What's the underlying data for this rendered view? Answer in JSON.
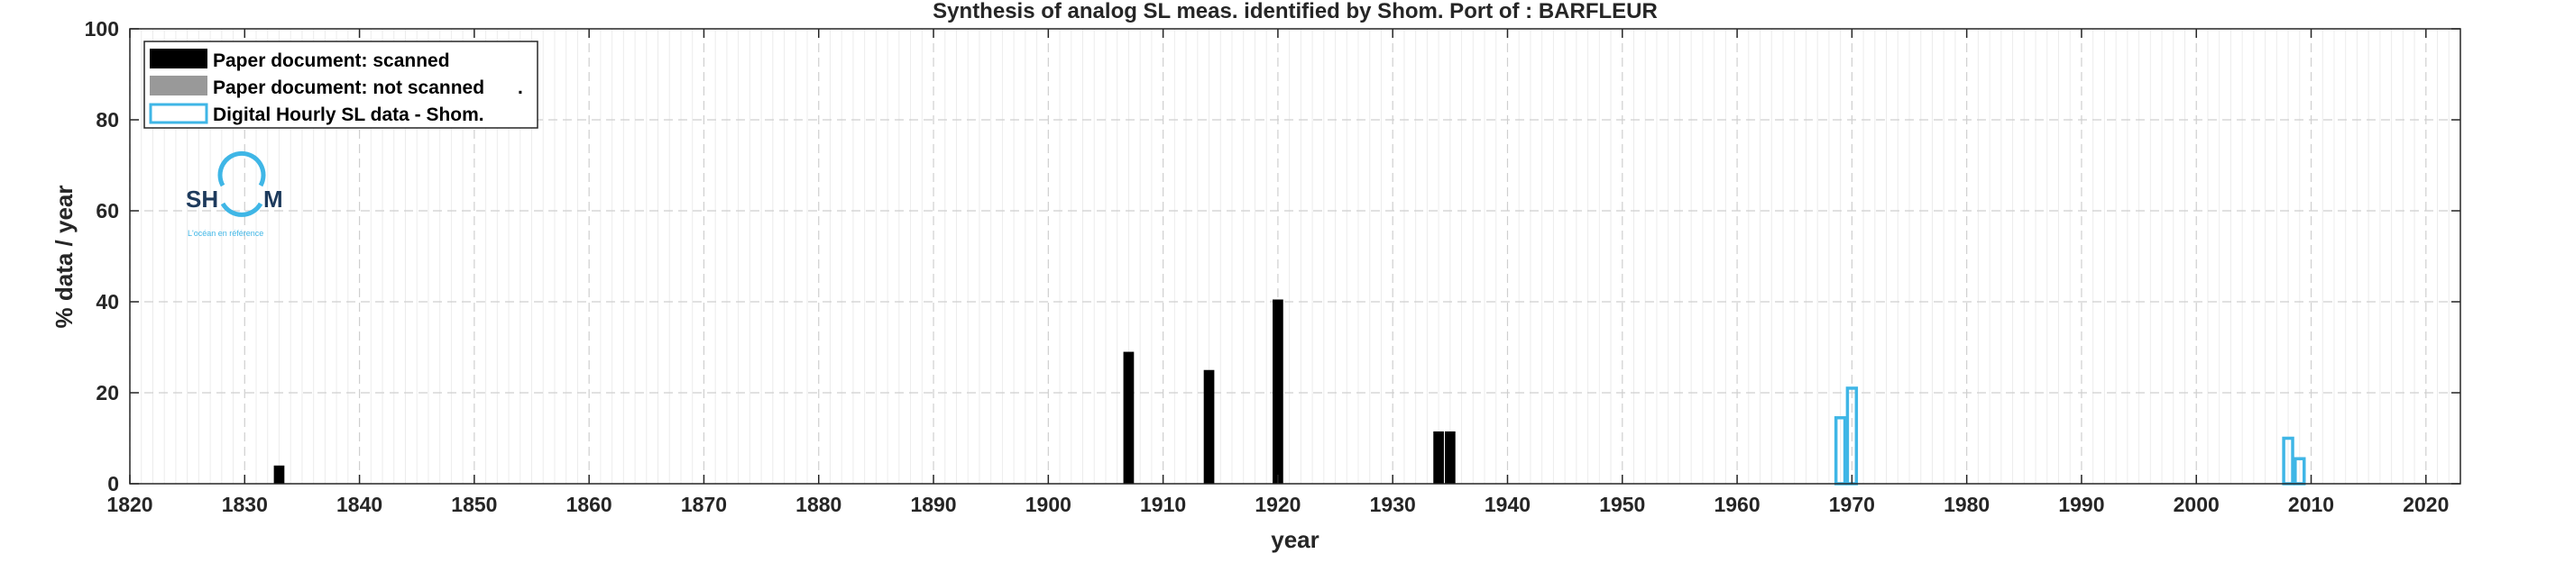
{
  "chart_data": {
    "type": "bar",
    "title": "Synthesis of analog SL meas. identified by Shom. Port of : BARFLEUR",
    "xlabel": "year",
    "ylabel": "% data / year",
    "xlim": [
      1820,
      2023
    ],
    "ylim": [
      0,
      100
    ],
    "xticks": [
      "1820",
      "1830",
      "1840",
      "1850",
      "1860",
      "1870",
      "1880",
      "1890",
      "1900",
      "1910",
      "1920",
      "1930",
      "1940",
      "1950",
      "1960",
      "1970",
      "1980",
      "1990",
      "2000",
      "2010",
      "2020"
    ],
    "yticks": [
      "0",
      "20",
      "40",
      "60",
      "80",
      "100"
    ],
    "grid": true,
    "legend_position": "top-left",
    "series": [
      {
        "name": "Paper document: scanned",
        "style": "filled",
        "color": "#000000",
        "points": [
          {
            "x": 1833,
            "y": 4
          },
          {
            "x": 1907,
            "y": 29
          },
          {
            "x": 1914,
            "y": 25
          },
          {
            "x": 1920,
            "y": 40.5
          },
          {
            "x": 1934,
            "y": 11.5
          },
          {
            "x": 1935,
            "y": 11.5
          }
        ]
      },
      {
        "name": "Paper document: not scanned",
        "style": "filled",
        "color": "#999999",
        "points": []
      },
      {
        "name": "Digital Hourly SL data - Shom.",
        "style": "outline",
        "color": "#3fb6e6",
        "points": [
          {
            "x": 1969,
            "y": 14.5
          },
          {
            "x": 1970,
            "y": 21
          },
          {
            "x": 2008,
            "y": 10
          },
          {
            "x": 2009,
            "y": 5.5
          }
        ]
      }
    ],
    "legend_suffix": "."
  },
  "logo": {
    "text_left": "SH",
    "text_right": "M",
    "tagline": "L'océan en référence",
    "color_dark": "#1d3a5c",
    "color_accent": "#3fb6e6"
  }
}
